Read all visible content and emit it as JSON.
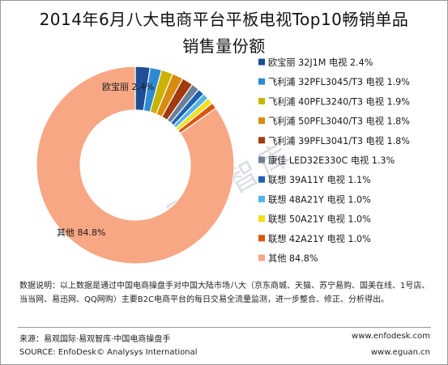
{
  "title": "2014年6月八大电商平台平板电视Top10畅销单品",
  "subtitle": "销售量份额",
  "watermark": "易观智库",
  "chart_data": {
    "type": "pie",
    "donut": true,
    "legend_position": "right",
    "series": [
      {
        "name": "欧宝丽 32J1M 电视",
        "value": 2.4,
        "value_label": "2.4%",
        "color": "#1f4e96",
        "slice_label": "欧宝丽 2.4%"
      },
      {
        "name": "飞利浦 32PFL3045/T3 电视",
        "value": 1.9,
        "value_label": "1.9%",
        "color": "#2e8bd1"
      },
      {
        "name": "飞利浦 40PFL3240/T3 电视",
        "value": 1.9,
        "value_label": "1.9%",
        "color": "#c9b300"
      },
      {
        "name": "飞利浦 50PFL3040/T3 电视",
        "value": 1.8,
        "value_label": "1.8%",
        "color": "#d88b0e"
      },
      {
        "name": "飞利浦 39PFL3041/T3 电视",
        "value": 1.8,
        "value_label": "1.8%",
        "color": "#a33a0d"
      },
      {
        "name": "康佳 LED32E330C 电视",
        "value": 1.3,
        "value_label": "1.3%",
        "color": "#6b7f99"
      },
      {
        "name": "联想 39A11Y 电视",
        "value": 1.1,
        "value_label": "1.1%",
        "color": "#1e63b0"
      },
      {
        "name": "联想 48A21Y 电视",
        "value": 1.0,
        "value_label": "1.0%",
        "color": "#55b4ea"
      },
      {
        "name": "联想 50A21Y 电视",
        "value": 1.0,
        "value_label": "1.0%",
        "color": "#f2df1c"
      },
      {
        "name": "联想 42A21Y 电视",
        "value": 1.0,
        "value_label": "1.0%",
        "color": "#d9570e"
      },
      {
        "name": "其他",
        "value": 84.8,
        "value_label": "84.8%",
        "color": "#f7a784",
        "slice_label": "其他 84.8%"
      }
    ]
  },
  "note": "数据说明：以上数据是通过中国电商操盘手对中国大陆市场八大（京东商城、天猫、苏宁易购、国美在线、1号店、当当网、易迅网、QQ网购）主要B2C电商平台的每日交易全流量监测，进一步整合、修正、分析得出。",
  "source_cn": "来源：易观国际·易观智库·中国电商操盘手",
  "source_en": "SOURCE: EnfoDesk© Analysys International",
  "url1": "www.enfodesk.com",
  "url2": "www.eguan.cn"
}
